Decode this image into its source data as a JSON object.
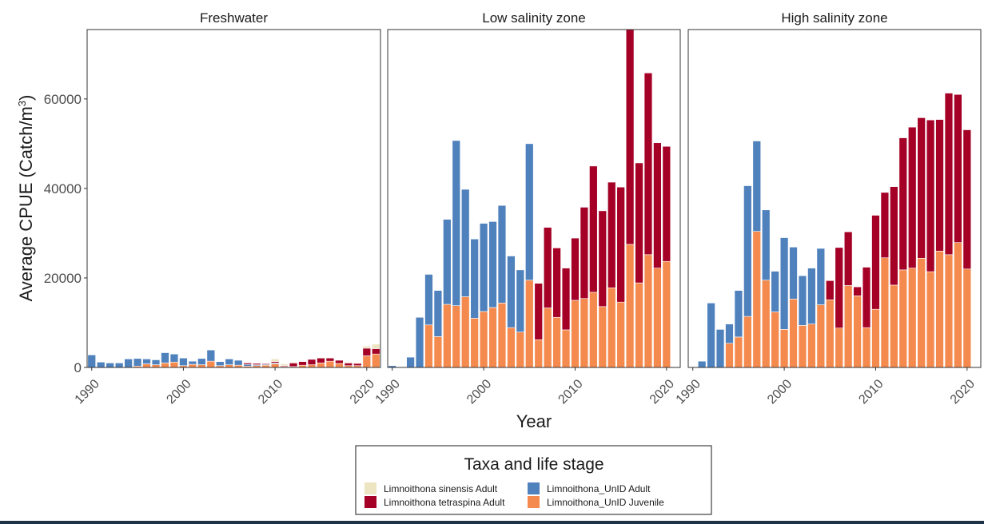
{
  "chart_data": {
    "type": "bar",
    "stacked": true,
    "ylabel_main": "Average CPUE (Catch/m",
    "ylabel_sup": "3",
    "ylabel_end": ")",
    "xlabel": "Year",
    "ylim": [
      0,
      75500
    ],
    "xlim": [
      1989.5,
      2021.5
    ],
    "y_ticks": [
      0,
      20000,
      40000,
      60000
    ],
    "x_ticks": [
      1990,
      2000,
      2010,
      2020
    ],
    "legend": {
      "title": "Taxa and life stage",
      "placement": "bottom",
      "entries": [
        {
          "label": "Limnoithona sinensis Adult",
          "color": "#ede4c2"
        },
        {
          "label": "Limnoithona tetraspina Adult",
          "color": "#a50026"
        },
        {
          "label": "Limnoithona_UnID Adult",
          "color": "#4f81bd"
        },
        {
          "label": "Limnoithona_UnID Juvenile",
          "color": "#f48a4e"
        }
      ]
    },
    "stack_order": [
      "juvenile",
      "unid_adult",
      "tetraspina",
      "sinensis"
    ],
    "colors": {
      "juvenile": "#f48a4e",
      "unid_adult": "#4f81bd",
      "tetraspina": "#a50026",
      "sinensis": "#ede4c2"
    },
    "panels": [
      {
        "title": "Freshwater",
        "x": [
          1990,
          1991,
          1992,
          1993,
          1994,
          1995,
          1996,
          1997,
          1998,
          1999,
          2000,
          2001,
          2002,
          2003,
          2004,
          2005,
          2006,
          2007,
          2008,
          2009,
          2010,
          2011,
          2012,
          2013,
          2014,
          2015,
          2016,
          2017,
          2018,
          2019,
          2020,
          2021
        ],
        "juvenile": [
          0,
          0,
          0,
          0,
          0,
          300,
          800,
          600,
          1000,
          1200,
          400,
          700,
          600,
          1400,
          400,
          600,
          500,
          300,
          400,
          500,
          800,
          200,
          200,
          500,
          600,
          1000,
          1400,
          900,
          400,
          400,
          2600,
          3000
        ],
        "unid_adult": [
          2800,
          1200,
          1000,
          1000,
          1900,
          1700,
          1100,
          1100,
          2300,
          1800,
          1700,
          700,
          1400,
          2500,
          900,
          1300,
          1100,
          400,
          200,
          200,
          200,
          0,
          0,
          0,
          0,
          0,
          0,
          0,
          0,
          0,
          0,
          0
        ],
        "tetraspina": [
          0,
          0,
          0,
          0,
          0,
          0,
          0,
          0,
          0,
          0,
          0,
          0,
          0,
          0,
          0,
          0,
          0,
          300,
          300,
          200,
          300,
          200,
          800,
          800,
          1200,
          1100,
          700,
          700,
          600,
          500,
          1700,
          1200
        ],
        "sinensis": [
          0,
          0,
          0,
          0,
          0,
          0,
          0,
          0,
          0,
          0,
          0,
          0,
          0,
          0,
          0,
          0,
          0,
          0,
          0,
          100,
          600,
          400,
          200,
          0,
          0,
          0,
          0,
          0,
          200,
          200,
          500,
          1000
        ]
      },
      {
        "title": "Low salinity zone",
        "x": [
          1990,
          1991,
          1992,
          1993,
          1994,
          1995,
          1996,
          1997,
          1998,
          1999,
          2000,
          2001,
          2002,
          2003,
          2004,
          2005,
          2006,
          2007,
          2008,
          2009,
          2010,
          2011,
          2012,
          2013,
          2014,
          2015,
          2016,
          2017,
          2018,
          2019,
          2020,
          2021
        ],
        "juvenile": [
          0,
          0,
          0,
          0,
          9500,
          6900,
          14100,
          13800,
          15800,
          11000,
          12500,
          13400,
          14400,
          8900,
          7900,
          19500,
          6200,
          13300,
          11200,
          8400,
          15000,
          15400,
          16800,
          13600,
          17800,
          14600,
          27500,
          18900,
          25200,
          22200,
          23700,
          0
        ],
        "unid_adult": [
          400,
          0,
          2300,
          11200,
          11300,
          10300,
          19000,
          36900,
          24000,
          17700,
          19700,
          19200,
          21800,
          16000,
          13900,
          30500,
          0,
          0,
          0,
          0,
          0,
          0,
          0,
          0,
          0,
          0,
          0,
          0,
          0,
          0,
          0,
          0
        ],
        "tetraspina": [
          0,
          0,
          0,
          0,
          0,
          0,
          0,
          0,
          0,
          0,
          0,
          0,
          0,
          0,
          0,
          0,
          12600,
          18000,
          15500,
          13800,
          13900,
          20400,
          28200,
          21400,
          23600,
          25700,
          48000,
          26800,
          40600,
          28000,
          25700,
          0
        ],
        "sinensis": [
          0,
          0,
          0,
          0,
          0,
          0,
          0,
          0,
          0,
          0,
          0,
          0,
          0,
          0,
          0,
          0,
          0,
          0,
          0,
          0,
          0,
          0,
          0,
          0,
          0,
          0,
          0,
          0,
          0,
          0,
          0,
          0
        ]
      },
      {
        "title": "High salinity zone",
        "x": [
          1990,
          1991,
          1992,
          1993,
          1994,
          1995,
          1996,
          1997,
          1998,
          1999,
          2000,
          2001,
          2002,
          2003,
          2004,
          2005,
          2006,
          2007,
          2008,
          2009,
          2010,
          2011,
          2012,
          2013,
          2014,
          2015,
          2016,
          2017,
          2018,
          2019,
          2020,
          2021
        ],
        "juvenile": [
          0,
          0,
          0,
          0,
          5400,
          6800,
          11400,
          30400,
          19500,
          12400,
          8500,
          15300,
          9400,
          9700,
          14000,
          15100,
          8800,
          18300,
          16000,
          8900,
          13000,
          24500,
          18400,
          21800,
          22200,
          24400,
          21400,
          26000,
          25200,
          27900,
          22000,
          0
        ],
        "unid_adult": [
          0,
          1400,
          14400,
          8500,
          4300,
          10400,
          29200,
          20200,
          15700,
          9100,
          20500,
          11600,
          11100,
          12500,
          12600,
          0,
          0,
          0,
          0,
          0,
          0,
          0,
          0,
          0,
          0,
          0,
          0,
          0,
          0,
          0,
          0,
          0
        ],
        "tetraspina": [
          0,
          0,
          0,
          0,
          0,
          0,
          0,
          0,
          0,
          0,
          0,
          0,
          0,
          0,
          0,
          4300,
          18000,
          12000,
          2000,
          13500,
          21000,
          14600,
          22000,
          29500,
          31500,
          31400,
          33900,
          29400,
          36100,
          33100,
          31100,
          0
        ],
        "sinensis": [
          0,
          0,
          0,
          0,
          0,
          0,
          0,
          0,
          0,
          0,
          0,
          0,
          0,
          0,
          0,
          0,
          0,
          0,
          0,
          0,
          0,
          0,
          0,
          0,
          0,
          0,
          0,
          0,
          0,
          0,
          0,
          0
        ]
      }
    ]
  }
}
